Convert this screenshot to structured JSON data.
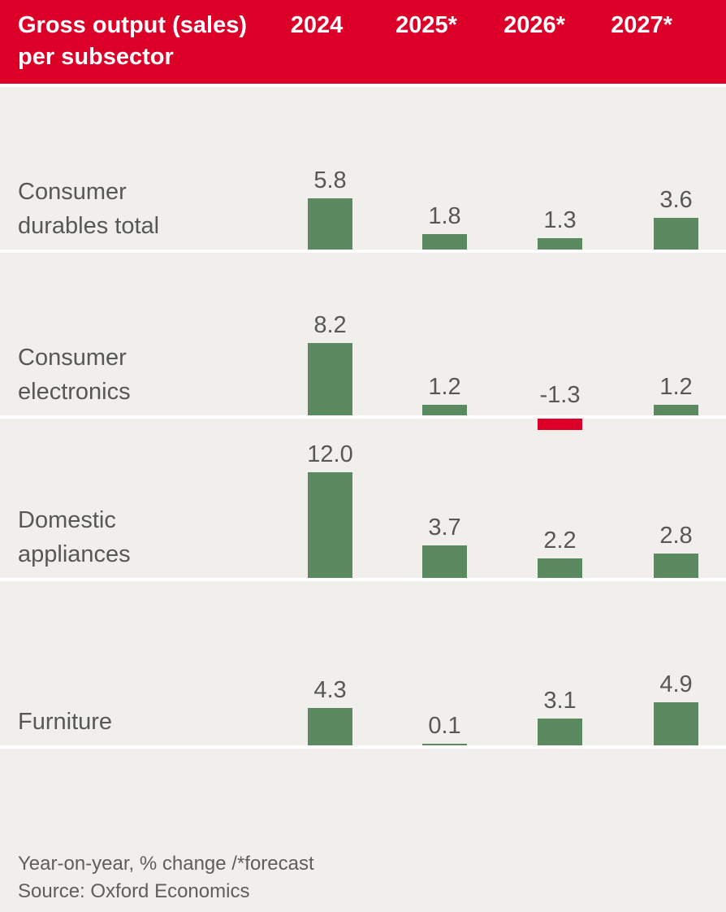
{
  "header": {
    "title": "Gross output (sales)\nper subsector",
    "columns": [
      "2024",
      "2025*",
      "2026*",
      "2027*"
    ]
  },
  "chart_data": {
    "type": "bar",
    "title": "Gross output (sales) per subsector",
    "categories": [
      "2024",
      "2025*",
      "2026*",
      "2027*"
    ],
    "series": [
      {
        "name": "Consumer durables total",
        "values": [
          5.8,
          1.8,
          1.3,
          3.6
        ]
      },
      {
        "name": "Consumer electronics",
        "values": [
          8.2,
          1.2,
          -1.3,
          1.2
        ]
      },
      {
        "name": "Domestic appliances",
        "values": [
          12.0,
          3.7,
          2.2,
          2.8
        ]
      },
      {
        "name": "Furniture",
        "values": [
          4.3,
          0.1,
          3.1,
          4.9
        ]
      }
    ],
    "unit": "Year-on-year, % change",
    "forecast_marker": "* = forecast",
    "legend_position": "none",
    "grid": false,
    "positive_color": "#5b8a61",
    "negative_color": "#dc0028"
  },
  "colors": {
    "header_background": "#dc0028",
    "page_background": "#f1efec",
    "separator": "#ffffff",
    "label_text": "#575756",
    "header_text": "#ffffff",
    "footer_text": "#5f5e5c"
  },
  "footer": {
    "note": "Year-on-year, % change /*forecast",
    "source": "Source: Oxford Economics"
  }
}
